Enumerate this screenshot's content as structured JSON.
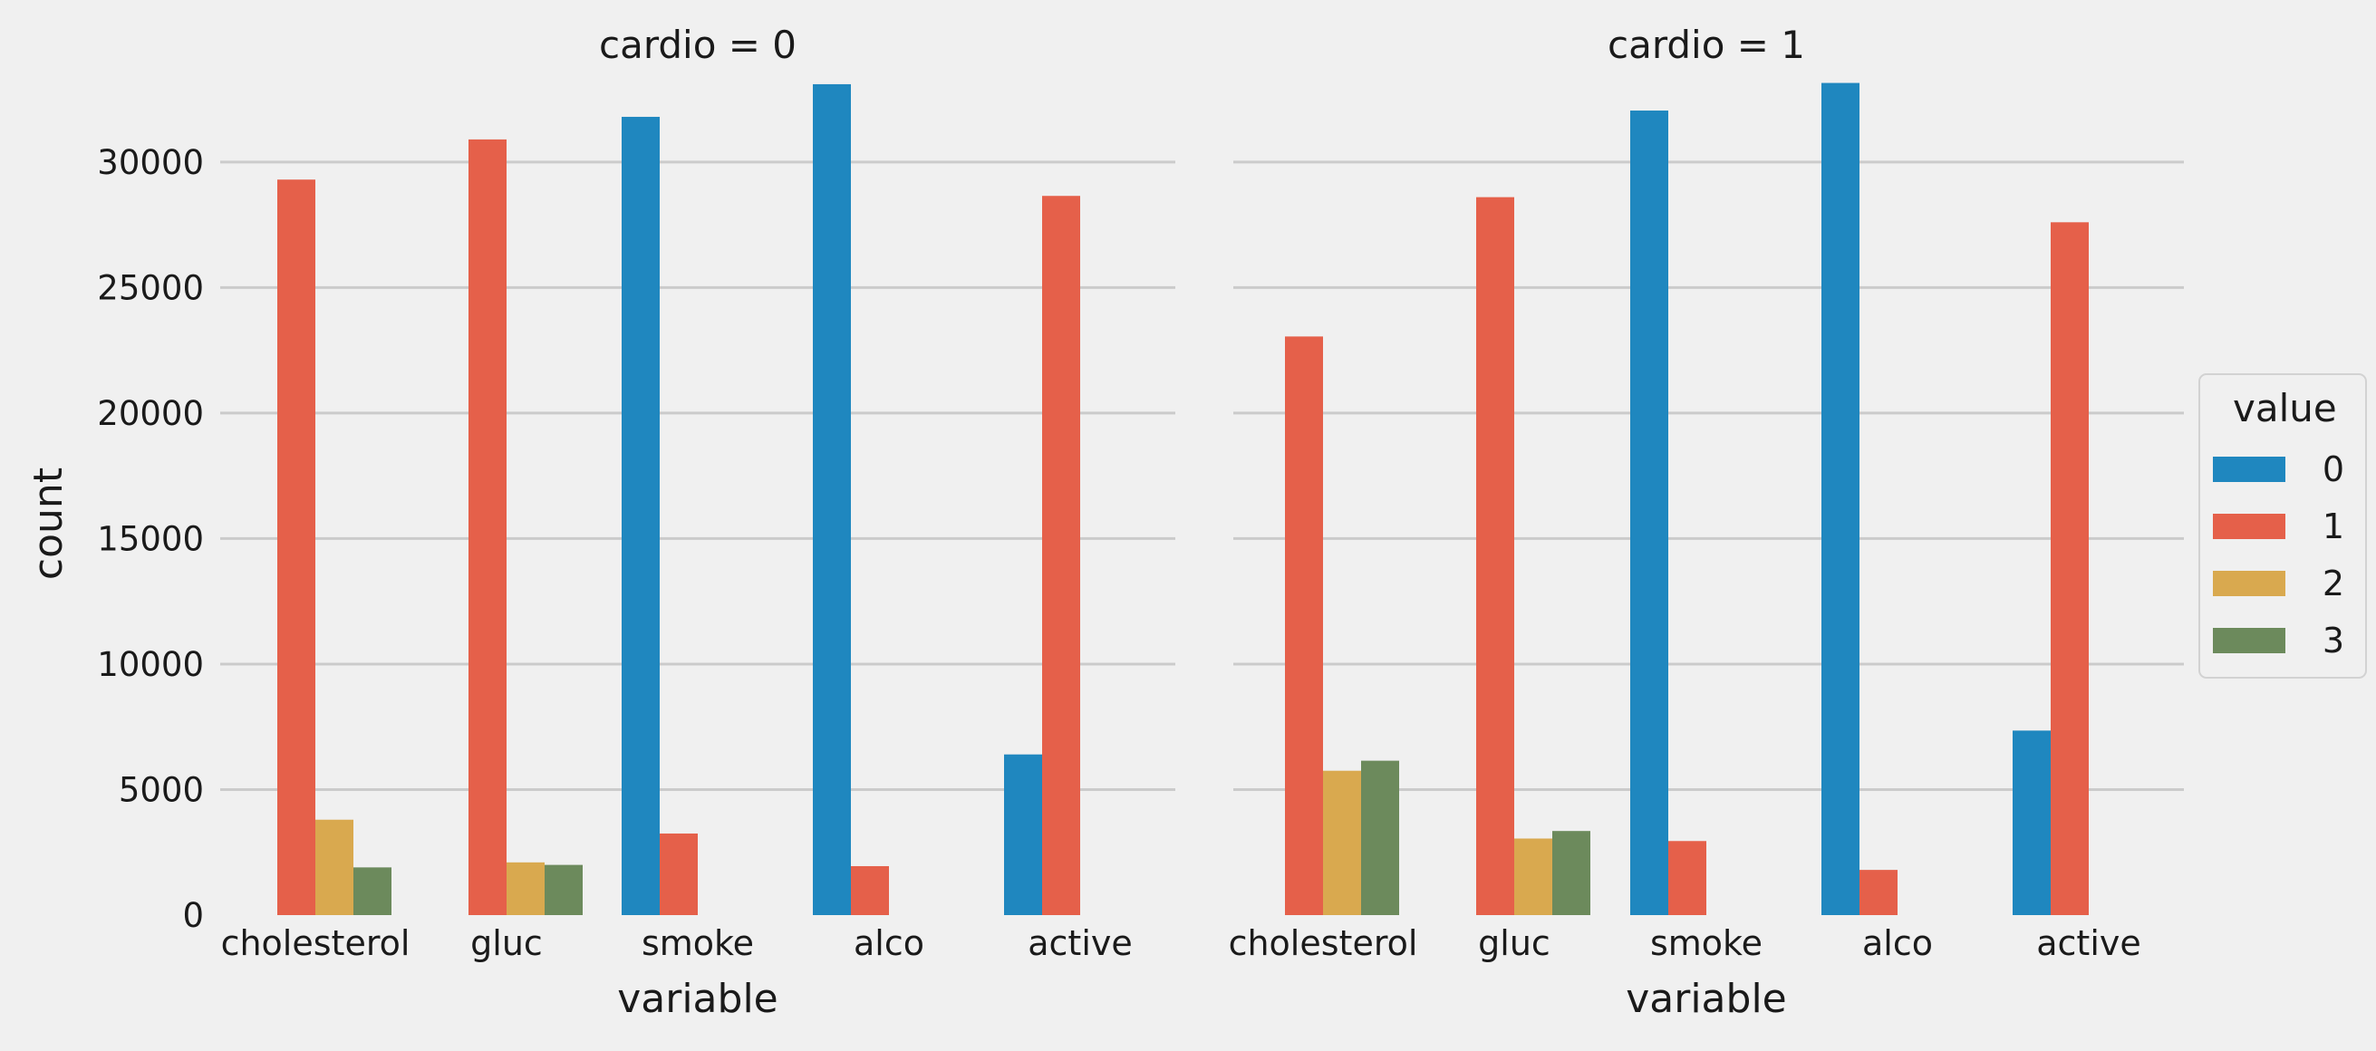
{
  "chart_data": {
    "type": "bar",
    "ylabel": "count",
    "ylim": [
      0,
      34000
    ],
    "yticks": [
      0,
      5000,
      10000,
      15000,
      20000,
      25000,
      30000
    ],
    "grid": true,
    "legend": {
      "title": "value",
      "entries": [
        "0",
        "1",
        "2",
        "3"
      ],
      "placement": "center-right"
    },
    "colors": [
      "#1f87bf",
      "#e5604a",
      "#d9a94f",
      "#6c8a5c"
    ],
    "categories": [
      "cholesterol",
      "gluc",
      "smoke",
      "alco",
      "active"
    ],
    "panels": [
      {
        "title": "cardio = 0",
        "xlabel": "variable",
        "series": [
          {
            "name": "0",
            "values": [
              null,
              null,
              31800,
              33100,
              6400
            ]
          },
          {
            "name": "1",
            "values": [
              29300,
              30900,
              3250,
              1950,
              28650
            ]
          },
          {
            "name": "2",
            "values": [
              3800,
              2100,
              null,
              null,
              null
            ]
          },
          {
            "name": "3",
            "values": [
              1900,
              2000,
              null,
              null,
              null
            ]
          }
        ]
      },
      {
        "title": "cardio = 1",
        "xlabel": "variable",
        "series": [
          {
            "name": "0",
            "values": [
              null,
              null,
              32050,
              33150,
              7350
            ]
          },
          {
            "name": "1",
            "values": [
              23050,
              28600,
              2950,
              1800,
              27600
            ]
          },
          {
            "name": "2",
            "values": [
              5750,
              3050,
              null,
              null,
              null
            ]
          },
          {
            "name": "3",
            "values": [
              6150,
              3350,
              null,
              null,
              null
            ]
          }
        ]
      }
    ]
  }
}
